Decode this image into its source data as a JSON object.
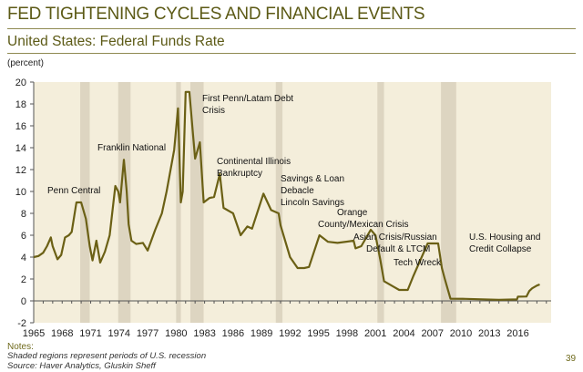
{
  "header": {
    "title": "FED TIGHTENING CYCLES AND FINANCIAL EVENTS",
    "subtitle": "United States: Federal Funds Rate"
  },
  "footer": {
    "notes_heading": "Notes:",
    "note": "Shaded regions represent periods of U.S. recession",
    "source": "Source: Haver Analytics, Gluskin Sheff",
    "page_number": "39"
  },
  "colors": {
    "title": "#5c5a16",
    "plot_background": "#f4eedb",
    "recession_shading": "#ddd5c1",
    "line": "#6b6015"
  },
  "chart_data": {
    "type": "line",
    "ylabel": "(percent)",
    "xlim": [
      1965,
      2019.5
    ],
    "ylim": [
      -2,
      20
    ],
    "yticks": [
      -2,
      0,
      2,
      4,
      6,
      8,
      10,
      12,
      14,
      16,
      18,
      20
    ],
    "xticks": [
      1965,
      1968,
      1971,
      1974,
      1977,
      1980,
      1983,
      1986,
      1989,
      1992,
      1995,
      1998,
      2001,
      2004,
      2007,
      2010,
      2013,
      2016
    ],
    "grid": false,
    "recessions": [
      [
        1969.9,
        1970.9
      ],
      [
        1973.9,
        1975.2
      ],
      [
        1980.0,
        1980.5
      ],
      [
        1981.5,
        1982.9
      ],
      [
        1990.5,
        1991.2
      ],
      [
        2001.2,
        2001.9
      ],
      [
        2007.9,
        2009.5
      ]
    ],
    "series": [
      {
        "points": [
          [
            1965.0,
            4.0
          ],
          [
            1965.5,
            4.1
          ],
          [
            1966.0,
            4.4
          ],
          [
            1966.4,
            5.0
          ],
          [
            1966.8,
            5.8
          ],
          [
            1967.0,
            5.0
          ],
          [
            1967.5,
            3.8
          ],
          [
            1967.9,
            4.2
          ],
          [
            1968.3,
            5.8
          ],
          [
            1968.7,
            6.0
          ],
          [
            1969.0,
            6.3
          ],
          [
            1969.5,
            9.0
          ],
          [
            1970.0,
            9.0
          ],
          [
            1970.5,
            7.5
          ],
          [
            1970.9,
            5.0
          ],
          [
            1971.2,
            3.7
          ],
          [
            1971.6,
            5.5
          ],
          [
            1972.0,
            3.5
          ],
          [
            1972.5,
            4.5
          ],
          [
            1973.0,
            6.0
          ],
          [
            1973.6,
            10.5
          ],
          [
            1973.9,
            10.0
          ],
          [
            1974.1,
            9.0
          ],
          [
            1974.5,
            12.9
          ],
          [
            1974.8,
            10.0
          ],
          [
            1975.0,
            7.0
          ],
          [
            1975.3,
            5.5
          ],
          [
            1975.8,
            5.2
          ],
          [
            1976.5,
            5.3
          ],
          [
            1977.0,
            4.6
          ],
          [
            1977.8,
            6.5
          ],
          [
            1978.5,
            8.0
          ],
          [
            1979.0,
            10.0
          ],
          [
            1979.8,
            13.8
          ],
          [
            1980.2,
            17.6
          ],
          [
            1980.5,
            9.0
          ],
          [
            1980.7,
            10.0
          ],
          [
            1981.0,
            19.1
          ],
          [
            1981.4,
            19.1
          ],
          [
            1981.8,
            15.0
          ],
          [
            1982.0,
            13.0
          ],
          [
            1982.5,
            14.5
          ],
          [
            1982.9,
            9.0
          ],
          [
            1983.5,
            9.4
          ],
          [
            1984.0,
            9.5
          ],
          [
            1984.6,
            11.6
          ],
          [
            1985.0,
            8.5
          ],
          [
            1986.0,
            8.0
          ],
          [
            1986.8,
            6.0
          ],
          [
            1987.5,
            6.8
          ],
          [
            1988.0,
            6.6
          ],
          [
            1989.2,
            9.8
          ],
          [
            1990.0,
            8.3
          ],
          [
            1990.8,
            8.0
          ],
          [
            1991.0,
            6.9
          ],
          [
            1992.0,
            4.0
          ],
          [
            1992.8,
            3.0
          ],
          [
            1993.5,
            3.0
          ],
          [
            1994.0,
            3.1
          ],
          [
            1995.1,
            6.0
          ],
          [
            1996.0,
            5.4
          ],
          [
            1997.0,
            5.3
          ],
          [
            1998.7,
            5.5
          ],
          [
            1998.9,
            4.8
          ],
          [
            1999.5,
            5.0
          ],
          [
            2000.5,
            6.5
          ],
          [
            2001.0,
            6.0
          ],
          [
            2001.5,
            3.8
          ],
          [
            2001.9,
            1.8
          ],
          [
            2002.9,
            1.3
          ],
          [
            2003.5,
            1.0
          ],
          [
            2004.4,
            1.0
          ],
          [
            2005.0,
            2.3
          ],
          [
            2006.5,
            5.25
          ],
          [
            2007.6,
            5.25
          ],
          [
            2008.0,
            3.0
          ],
          [
            2008.3,
            2.0
          ],
          [
            2008.9,
            0.2
          ],
          [
            2010.5,
            0.18
          ],
          [
            2014.0,
            0.1
          ],
          [
            2015.9,
            0.13
          ],
          [
            2016.0,
            0.38
          ],
          [
            2016.9,
            0.4
          ],
          [
            2017.2,
            0.9
          ],
          [
            2017.5,
            1.15
          ],
          [
            2018.0,
            1.4
          ],
          [
            2018.3,
            1.5
          ]
        ]
      }
    ],
    "annotations": [
      {
        "lines": [
          "Penn Central"
        ]
      },
      {
        "lines": [
          "Franklin National"
        ]
      },
      {
        "lines": [
          "First Penn/Latam Debt",
          "Crisis"
        ]
      },
      {
        "lines": [
          "Continental Illinois",
          "Bankruptcy"
        ]
      },
      {
        "lines": [
          "Savings & Loan",
          "Debacle",
          "Lincoln Savings"
        ]
      },
      {
        "lines": [
          "Orange",
          "County/Mexican Crisis"
        ]
      },
      {
        "lines": [
          "Asian Crisis/Russian",
          "Default & LTCM"
        ]
      },
      {
        "lines": [
          "Tech Wreck"
        ]
      },
      {
        "lines": [
          "U.S. Housing and",
          "Credit Collapse"
        ]
      }
    ]
  }
}
